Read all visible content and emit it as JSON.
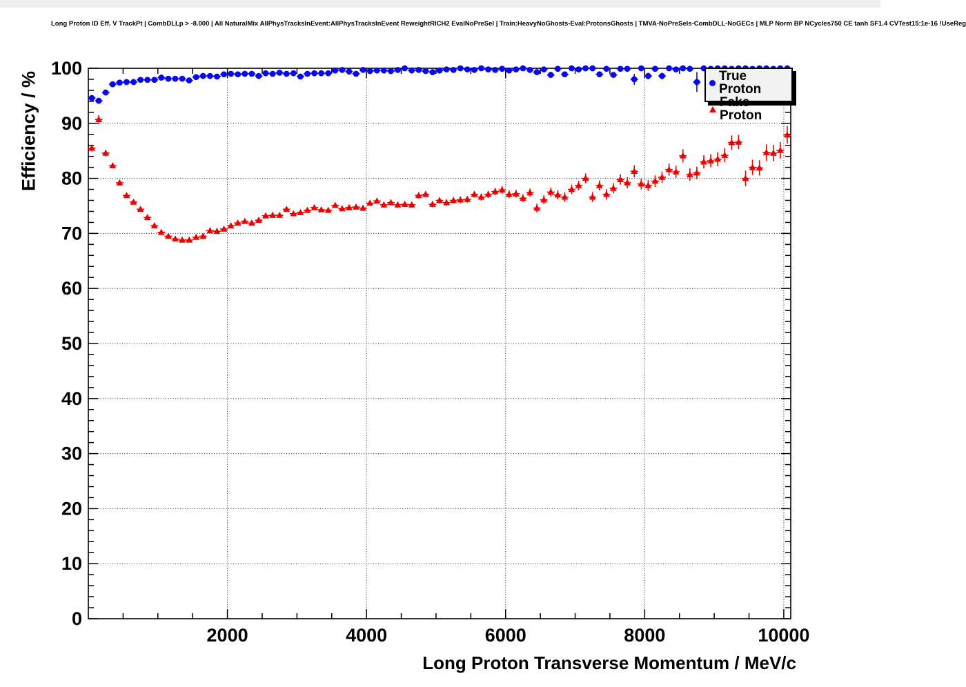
{
  "title": "Long Proton ID Eff. V TrackPt | CombDLLp > -8.000 | All NaturalMix AllPhysTracksInEvent:AllPhysTracksInEvent ReweightRICH2 EvalNoPreSel | Train:HeavyNoGhosts-Eval:ProtonsGhosts | TMVA-NoPreSels-CombDLL-NoGECs | MLP Norm BP NCycles750 CE tanh SF1.4 CVTest15:1e-16 !UseReg",
  "axes": {
    "x": {
      "label": "Long Proton Transverse Momentum / MeV/c",
      "min": 0,
      "max": 10100,
      "major_ticks": [
        2000,
        4000,
        6000,
        8000,
        10000
      ],
      "minor_step": 500
    },
    "y": {
      "label": "Efficiency / %",
      "min": 0,
      "max": 100,
      "major_ticks": [
        0,
        10,
        20,
        30,
        40,
        50,
        60,
        70,
        80,
        90,
        100
      ],
      "minor_step": 2
    }
  },
  "legend": {
    "items": [
      {
        "label": "True Proton",
        "marker": "circle",
        "color": "#0808ee"
      },
      {
        "label": "Fake Proton",
        "marker": "triangle",
        "color": "#ee0000"
      }
    ]
  },
  "chart_data": {
    "type": "scatter",
    "title": "Long Proton ID Eff. V TrackPt",
    "xlabel": "Long Proton Transverse Momentum / MeV/c",
    "ylabel": "Efficiency / %",
    "xlim": [
      0,
      10100
    ],
    "ylim": [
      0,
      100
    ],
    "grid": true,
    "grid_style": "dotted",
    "legend_position": "top-right",
    "point_format": [
      "pt_MeVc",
      "efficiency_pct",
      "y_error_pct"
    ],
    "series": [
      {
        "name": "True Proton",
        "color": "#0808ee",
        "marker": "circle",
        "points": [
          [
            50,
            94.6,
            0.5
          ],
          [
            150,
            94.1,
            0.5
          ],
          [
            250,
            95.6,
            0.4
          ],
          [
            350,
            97.1,
            0.3
          ],
          [
            450,
            97.4,
            0.25
          ],
          [
            550,
            97.5,
            0.2
          ],
          [
            650,
            97.5,
            0.2
          ],
          [
            750,
            97.9,
            0.2
          ],
          [
            850,
            97.9,
            0.2
          ],
          [
            950,
            97.9,
            0.15
          ],
          [
            1050,
            98.3,
            0.15
          ],
          [
            1150,
            98.1,
            0.15
          ],
          [
            1250,
            98.1,
            0.15
          ],
          [
            1350,
            98.1,
            0.15
          ],
          [
            1450,
            97.8,
            0.2
          ],
          [
            1550,
            98.4,
            0.15
          ],
          [
            1650,
            98.6,
            0.15
          ],
          [
            1750,
            98.6,
            0.15
          ],
          [
            1850,
            98.5,
            0.15
          ],
          [
            1950,
            98.9,
            0.1
          ],
          [
            2050,
            99.0,
            0.1
          ],
          [
            2150,
            98.9,
            0.1
          ],
          [
            2250,
            99.0,
            0.1
          ],
          [
            2350,
            99.0,
            0.1
          ],
          [
            2450,
            98.6,
            0.15
          ],
          [
            2550,
            99.1,
            0.1
          ],
          [
            2650,
            99.0,
            0.1
          ],
          [
            2750,
            99.2,
            0.1
          ],
          [
            2850,
            99.0,
            0.1
          ],
          [
            2950,
            99.1,
            0.1
          ],
          [
            3050,
            98.5,
            0.2
          ],
          [
            3150,
            99.0,
            0.15
          ],
          [
            3250,
            99.1,
            0.15
          ],
          [
            3350,
            99.1,
            0.15
          ],
          [
            3450,
            99.1,
            0.15
          ],
          [
            3550,
            99.6,
            0.1
          ],
          [
            3650,
            99.7,
            0.1
          ],
          [
            3750,
            99.4,
            0.15
          ],
          [
            3850,
            99.0,
            0.2
          ],
          [
            3950,
            99.7,
            0.1
          ],
          [
            4050,
            99.5,
            0.15
          ],
          [
            4150,
            99.6,
            0.15
          ],
          [
            4250,
            99.6,
            0.15
          ],
          [
            4350,
            99.5,
            0.15
          ],
          [
            4450,
            99.7,
            0.1
          ],
          [
            4550,
            100.0,
            0.05
          ],
          [
            4650,
            99.6,
            0.15
          ],
          [
            4750,
            99.7,
            0.15
          ],
          [
            4850,
            99.5,
            0.2
          ],
          [
            4950,
            99.3,
            0.25
          ],
          [
            5050,
            99.6,
            0.2
          ],
          [
            5150,
            99.8,
            0.15
          ],
          [
            5250,
            99.7,
            0.15
          ],
          [
            5350,
            100.0,
            0.05
          ],
          [
            5450,
            99.8,
            0.15
          ],
          [
            5550,
            99.7,
            0.2
          ],
          [
            5650,
            100.0,
            0.05
          ],
          [
            5750,
            99.8,
            0.15
          ],
          [
            5850,
            99.7,
            0.2
          ],
          [
            5950,
            99.9,
            0.1
          ],
          [
            6050,
            99.6,
            0.2
          ],
          [
            6150,
            99.8,
            0.15
          ],
          [
            6250,
            100.0,
            0.05
          ],
          [
            6350,
            99.7,
            0.2
          ],
          [
            6450,
            99.3,
            0.4
          ],
          [
            6550,
            99.8,
            0.2
          ],
          [
            6650,
            98.8,
            0.4
          ],
          [
            6750,
            99.9,
            0.1
          ],
          [
            6850,
            98.9,
            0.4
          ],
          [
            6950,
            100.0,
            0.05
          ],
          [
            7050,
            99.8,
            0.2
          ],
          [
            7150,
            100.0,
            0.1
          ],
          [
            7250,
            100.0,
            0.1
          ],
          [
            7350,
            98.9,
            0.5
          ],
          [
            7450,
            99.9,
            0.15
          ],
          [
            7550,
            98.8,
            0.5
          ],
          [
            7650,
            99.9,
            0.2
          ],
          [
            7750,
            99.9,
            0.2
          ],
          [
            7850,
            98.0,
            1.0
          ],
          [
            7950,
            100.0,
            0.1
          ],
          [
            8050,
            98.6,
            0.6
          ],
          [
            8150,
            99.9,
            0.2
          ],
          [
            8250,
            98.6,
            0.6
          ],
          [
            8350,
            100.0,
            0.1
          ],
          [
            8450,
            99.8,
            0.3
          ],
          [
            8550,
            100.0,
            0.1
          ],
          [
            8650,
            99.9,
            0.2
          ],
          [
            8750,
            97.5,
            1.8
          ],
          [
            8850,
            100.0,
            0.1
          ],
          [
            8950,
            99.9,
            0.2
          ],
          [
            9050,
            100.0,
            0.1
          ],
          [
            9150,
            100.0,
            0.1
          ],
          [
            9250,
            99.9,
            0.2
          ],
          [
            9350,
            100.0,
            0.1
          ],
          [
            9450,
            100.0,
            0.1
          ],
          [
            9550,
            99.9,
            0.2
          ],
          [
            9650,
            100.0,
            0.1
          ],
          [
            9750,
            100.0,
            0.1
          ],
          [
            9850,
            99.9,
            0.2
          ],
          [
            9950,
            100.0,
            0.1
          ],
          [
            10050,
            100.0,
            0.1
          ]
        ]
      },
      {
        "name": "Fake Proton",
        "color": "#ee0000",
        "marker": "triangle",
        "points": [
          [
            50,
            85.5,
            0.6
          ],
          [
            150,
            90.7,
            0.8
          ],
          [
            250,
            84.6,
            0.6
          ],
          [
            350,
            82.3,
            0.5
          ],
          [
            450,
            79.2,
            0.5
          ],
          [
            550,
            76.9,
            0.4
          ],
          [
            650,
            75.7,
            0.4
          ],
          [
            750,
            74.4,
            0.4
          ],
          [
            850,
            72.9,
            0.35
          ],
          [
            950,
            71.4,
            0.35
          ],
          [
            1050,
            70.2,
            0.3
          ],
          [
            1150,
            69.5,
            0.3
          ],
          [
            1250,
            69.0,
            0.3
          ],
          [
            1350,
            68.8,
            0.3
          ],
          [
            1450,
            68.8,
            0.3
          ],
          [
            1550,
            69.3,
            0.3
          ],
          [
            1650,
            69.5,
            0.3
          ],
          [
            1750,
            70.5,
            0.3
          ],
          [
            1850,
            70.4,
            0.3
          ],
          [
            1950,
            70.8,
            0.3
          ],
          [
            2050,
            71.4,
            0.3
          ],
          [
            2150,
            71.9,
            0.3
          ],
          [
            2250,
            72.2,
            0.3
          ],
          [
            2350,
            71.9,
            0.3
          ],
          [
            2450,
            72.4,
            0.35
          ],
          [
            2550,
            73.2,
            0.35
          ],
          [
            2650,
            73.3,
            0.35
          ],
          [
            2750,
            73.3,
            0.35
          ],
          [
            2850,
            74.4,
            0.35
          ],
          [
            2950,
            73.6,
            0.35
          ],
          [
            3050,
            73.8,
            0.4
          ],
          [
            3150,
            74.2,
            0.4
          ],
          [
            3250,
            74.7,
            0.4
          ],
          [
            3350,
            74.3,
            0.4
          ],
          [
            3450,
            74.2,
            0.4
          ],
          [
            3550,
            75.1,
            0.4
          ],
          [
            3650,
            74.5,
            0.4
          ],
          [
            3750,
            74.7,
            0.45
          ],
          [
            3850,
            74.8,
            0.45
          ],
          [
            3950,
            74.6,
            0.45
          ],
          [
            4050,
            75.5,
            0.45
          ],
          [
            4150,
            75.9,
            0.45
          ],
          [
            4250,
            75.2,
            0.5
          ],
          [
            4350,
            75.6,
            0.5
          ],
          [
            4450,
            75.2,
            0.5
          ],
          [
            4550,
            75.3,
            0.5
          ],
          [
            4650,
            75.2,
            0.5
          ],
          [
            4750,
            76.9,
            0.55
          ],
          [
            4850,
            77.1,
            0.55
          ],
          [
            4950,
            75.3,
            0.55
          ],
          [
            5050,
            76.0,
            0.55
          ],
          [
            5150,
            75.6,
            0.6
          ],
          [
            5250,
            76.0,
            0.6
          ],
          [
            5350,
            76.1,
            0.6
          ],
          [
            5450,
            76.2,
            0.6
          ],
          [
            5550,
            77.1,
            0.6
          ],
          [
            5650,
            76.6,
            0.65
          ],
          [
            5750,
            77.1,
            0.65
          ],
          [
            5850,
            77.6,
            0.65
          ],
          [
            5950,
            77.9,
            0.7
          ],
          [
            6050,
            77.1,
            0.7
          ],
          [
            6150,
            77.2,
            0.7
          ],
          [
            6250,
            76.4,
            0.7
          ],
          [
            6350,
            77.4,
            0.75
          ],
          [
            6450,
            74.6,
            0.8
          ],
          [
            6550,
            76.1,
            0.8
          ],
          [
            6650,
            77.5,
            0.8
          ],
          [
            6750,
            77.0,
            0.8
          ],
          [
            6850,
            76.6,
            0.85
          ],
          [
            6950,
            78.0,
            0.85
          ],
          [
            7050,
            78.7,
            0.85
          ],
          [
            7150,
            80.0,
            0.9
          ],
          [
            7250,
            76.6,
            0.9
          ],
          [
            7350,
            78.7,
            0.9
          ],
          [
            7450,
            77.1,
            0.95
          ],
          [
            7550,
            78.2,
            0.95
          ],
          [
            7650,
            79.8,
            0.95
          ],
          [
            7750,
            79.2,
            1.0
          ],
          [
            7850,
            81.3,
            1.1
          ],
          [
            7950,
            79.0,
            1.0
          ],
          [
            8050,
            78.7,
            1.0
          ],
          [
            8150,
            79.5,
            1.05
          ],
          [
            8250,
            80.2,
            1.05
          ],
          [
            8350,
            81.6,
            1.1
          ],
          [
            8450,
            81.2,
            1.1
          ],
          [
            8550,
            84.1,
            1.2
          ],
          [
            8650,
            80.7,
            1.15
          ],
          [
            8750,
            81.0,
            1.15
          ],
          [
            8850,
            83.0,
            1.2
          ],
          [
            8950,
            83.2,
            1.2
          ],
          [
            9050,
            83.5,
            1.25
          ],
          [
            9150,
            84.2,
            1.25
          ],
          [
            9250,
            86.5,
            1.3
          ],
          [
            9350,
            86.6,
            1.3
          ],
          [
            9450,
            80.0,
            1.4
          ],
          [
            9550,
            82.0,
            1.4
          ],
          [
            9650,
            81.9,
            1.4
          ],
          [
            9750,
            84.7,
            1.5
          ],
          [
            9850,
            84.6,
            1.5
          ],
          [
            9950,
            85.1,
            1.5
          ],
          [
            10050,
            87.9,
            1.6
          ]
        ]
      }
    ]
  }
}
